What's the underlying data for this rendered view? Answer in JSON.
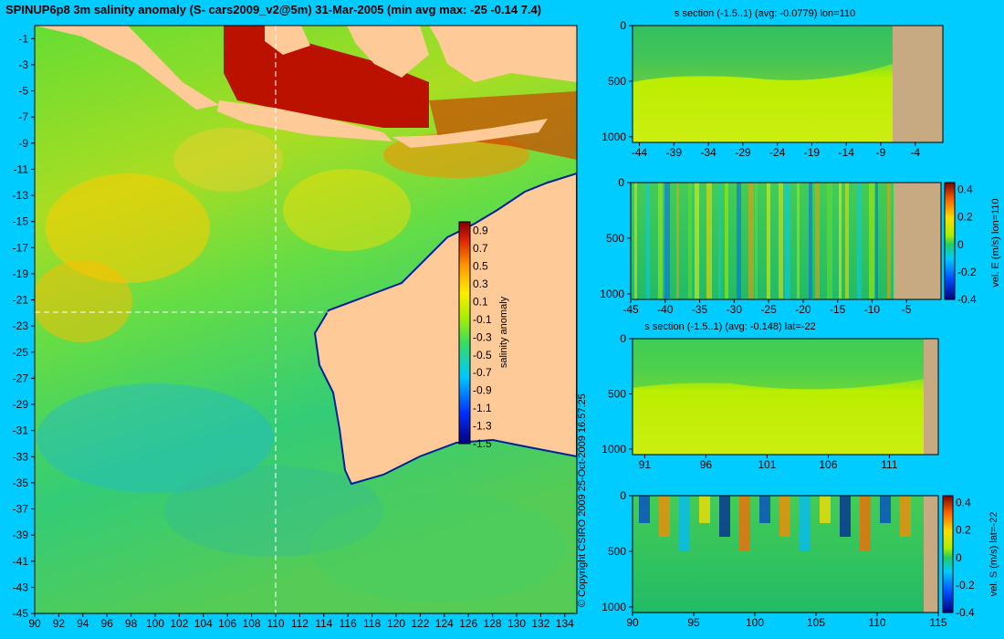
{
  "figure": {
    "title": "SPINUP6p8 3m salinity anomaly (S- cars2009_v2@5m) 31-Mar-2005 (min avg max: -25 -0.14 7.4)",
    "copyright": "© Copyright CSIRO 2009   25-Oct-2009 16:57:25"
  },
  "colors": {
    "background": "#00ccff",
    "land": "#fecb98",
    "section_land": "#c8aa82",
    "section_line": "#ffffff"
  },
  "chart_data": [
    {
      "id": "map",
      "type": "heatmap",
      "title": "",
      "xlabel": "",
      "ylabel": "",
      "xlim": [
        90,
        135
      ],
      "ylim": [
        -45,
        0
      ],
      "x_ticks": [
        90,
        92,
        94,
        96,
        98,
        100,
        102,
        104,
        106,
        108,
        110,
        112,
        114,
        116,
        118,
        120,
        122,
        124,
        126,
        128,
        130,
        132,
        134
      ],
      "y_ticks": [
        -1,
        -3,
        -5,
        -7,
        -9,
        -11,
        -13,
        -15,
        -17,
        -19,
        -21,
        -23,
        -25,
        -27,
        -29,
        -31,
        -33,
        -35,
        -37,
        -39,
        -41,
        -43,
        -45
      ],
      "section_lines": {
        "lon": 110,
        "lat": -22
      },
      "colorbar": {
        "label": "salinity anomaly",
        "range": [
          -1.5,
          1.0
        ],
        "ticks": [
          0.9,
          0.7,
          0.5,
          0.3,
          0.1,
          -0.1,
          -0.3,
          -0.5,
          -0.7,
          -0.9,
          -1.1,
          -1.3,
          -1.5
        ]
      }
    },
    {
      "id": "s-section-lon",
      "type": "heatmap",
      "title": "s section (-1.5..1) (avg: -0.0779) lon=110",
      "xlim": [
        -45,
        0
      ],
      "ylim": [
        1050,
        0
      ],
      "x_ticks": [
        -44,
        -39,
        -34,
        -29,
        -24,
        -19,
        -14,
        -9,
        -4
      ],
      "y_ticks": [
        0,
        500,
        1000
      ],
      "land_from": -8
    },
    {
      "id": "vel-e-section",
      "type": "heatmap",
      "title": "",
      "xlim": [
        -45,
        0
      ],
      "ylim": [
        1050,
        0
      ],
      "x_ticks": [
        -45,
        -40,
        -35,
        -30,
        -25,
        -20,
        -15,
        -10,
        -5
      ],
      "y_ticks": [
        0,
        500,
        1000
      ],
      "land_from": -8,
      "colorbar": {
        "label": "vel. E (m/s) lon=110",
        "range": [
          -0.4,
          0.45
        ],
        "ticks": [
          0.4,
          0.2,
          0,
          -0.2,
          -0.4
        ]
      }
    },
    {
      "id": "s-section-lat",
      "type": "heatmap",
      "title": "s section (-1.5..1) (avg: -0.148) lat=-22",
      "xlim": [
        90,
        115
      ],
      "ylim": [
        1050,
        0
      ],
      "x_ticks": [
        91,
        96,
        101,
        106,
        111
      ],
      "y_ticks": [
        0,
        500,
        1000
      ],
      "land_from": 114
    },
    {
      "id": "vel-s-section",
      "type": "heatmap",
      "title": "",
      "xlim": [
        90,
        115
      ],
      "ylim": [
        1050,
        0
      ],
      "x_ticks": [
        90,
        95,
        100,
        105,
        110,
        115
      ],
      "y_ticks": [
        0,
        500,
        1000
      ],
      "land_from": 114,
      "colorbar": {
        "label": "vel. S (m/s) lat=-22",
        "range": [
          -0.4,
          0.45
        ],
        "ticks": [
          0.4,
          0.2,
          0,
          -0.2,
          -0.4
        ]
      }
    }
  ]
}
